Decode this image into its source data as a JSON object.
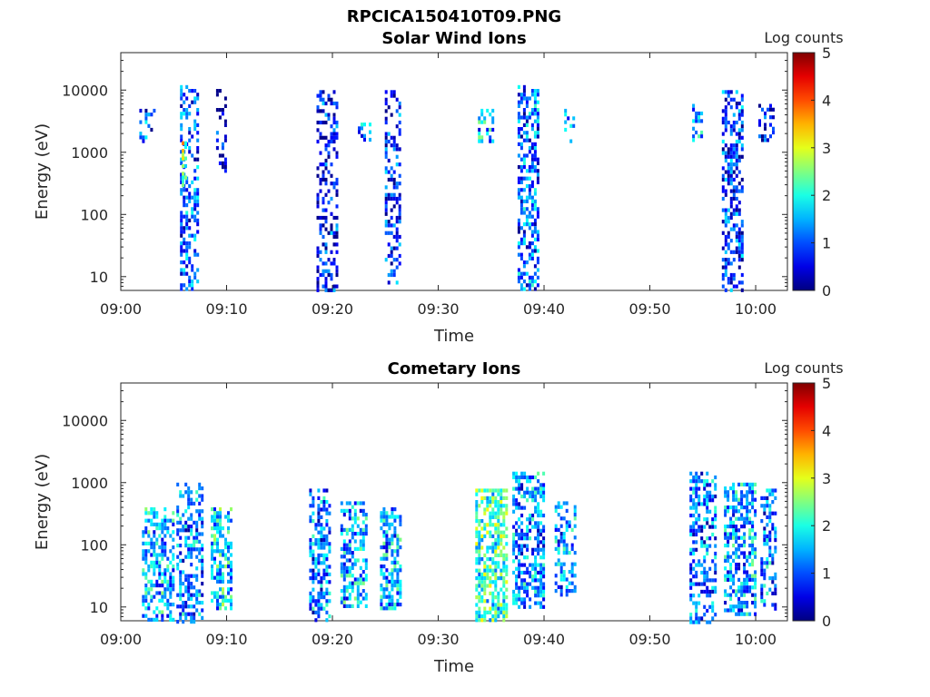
{
  "figure_title": "RPCICA150410T09.PNG",
  "chart_data": [
    {
      "type": "heatmap",
      "title": "Solar Wind Ions",
      "xlabel": "Time",
      "ylabel": "Energy (eV)",
      "x_ticks": [
        "09:00",
        "09:10",
        "09:20",
        "09:30",
        "09:40",
        "09:50",
        "10:00"
      ],
      "y_ticks": [
        "10",
        "100",
        "1000",
        "10000"
      ],
      "y_scale": "log",
      "xlim": [
        "09:00",
        "10:03"
      ],
      "ylim": [
        6,
        40000
      ],
      "colorbar": {
        "label": "Log counts",
        "ticks": [
          "0",
          "1",
          "2",
          "3",
          "4",
          "5"
        ],
        "range": [
          0,
          5
        ],
        "colormap": "jet"
      },
      "bursts": [
        {
          "time_min": 2.5,
          "width_min": 1.5,
          "e_lo": 1500,
          "e_hi": 5000,
          "level": 1.2,
          "density": 0.35
        },
        {
          "time_min": 6.5,
          "width_min": 1.8,
          "e_lo": 6,
          "e_hi": 12000,
          "level": 1.3,
          "density": 0.45
        },
        {
          "time_min": 6.0,
          "width_min": 0.5,
          "e_lo": 300,
          "e_hi": 1500,
          "level": 3.0,
          "density": 0.6
        },
        {
          "time_min": 9.5,
          "width_min": 1.0,
          "e_lo": 500,
          "e_hi": 12000,
          "level": 0.6,
          "density": 0.25
        },
        {
          "time_min": 19.5,
          "width_min": 2.0,
          "e_lo": 6,
          "e_hi": 10000,
          "level": 0.9,
          "density": 0.4
        },
        {
          "time_min": 23.0,
          "width_min": 1.2,
          "e_lo": 1500,
          "e_hi": 3000,
          "level": 1.8,
          "density": 0.4
        },
        {
          "time_min": 25.7,
          "width_min": 1.5,
          "e_lo": 8,
          "e_hi": 10000,
          "level": 1.0,
          "density": 0.4
        },
        {
          "time_min": 34.5,
          "width_min": 1.5,
          "e_lo": 1500,
          "e_hi": 5000,
          "level": 1.8,
          "density": 0.4
        },
        {
          "time_min": 38.5,
          "width_min": 2.0,
          "e_lo": 6,
          "e_hi": 12000,
          "level": 1.4,
          "density": 0.5
        },
        {
          "time_min": 42.3,
          "width_min": 0.8,
          "e_lo": 1500,
          "e_hi": 5000,
          "level": 1.5,
          "density": 0.35
        },
        {
          "time_min": 54.5,
          "width_min": 1.0,
          "e_lo": 1500,
          "e_hi": 6000,
          "level": 1.6,
          "density": 0.35
        },
        {
          "time_min": 57.8,
          "width_min": 2.0,
          "e_lo": 6,
          "e_hi": 10000,
          "level": 1.1,
          "density": 0.5
        },
        {
          "time_min": 61.0,
          "width_min": 1.5,
          "e_lo": 1500,
          "e_hi": 6000,
          "level": 0.8,
          "density": 0.25
        }
      ]
    },
    {
      "type": "heatmap",
      "title": "Cometary Ions",
      "xlabel": "Time",
      "ylabel": "Energy (eV)",
      "x_ticks": [
        "09:00",
        "09:10",
        "09:20",
        "09:30",
        "09:40",
        "09:50",
        "10:00"
      ],
      "y_ticks": [
        "10",
        "100",
        "1000",
        "10000"
      ],
      "y_scale": "log",
      "xlim": [
        "09:00",
        "10:03"
      ],
      "ylim": [
        6,
        40000
      ],
      "colorbar": {
        "label": "Log counts",
        "ticks": [
          "0",
          "1",
          "2",
          "3",
          "4",
          "5"
        ],
        "range": [
          0,
          5
        ],
        "colormap": "jet"
      },
      "bursts": [
        {
          "time_min": 3.5,
          "width_min": 3.0,
          "e_lo": 6,
          "e_hi": 400,
          "level": 1.8,
          "density": 0.55
        },
        {
          "time_min": 6.5,
          "width_min": 2.5,
          "e_lo": 6,
          "e_hi": 1000,
          "level": 1.5,
          "density": 0.5
        },
        {
          "time_min": 9.5,
          "width_min": 2.0,
          "e_lo": 10,
          "e_hi": 400,
          "level": 2.0,
          "density": 0.55
        },
        {
          "time_min": 18.8,
          "width_min": 2.0,
          "e_lo": 6,
          "e_hi": 800,
          "level": 1.5,
          "density": 0.5
        },
        {
          "time_min": 22.0,
          "width_min": 2.5,
          "e_lo": 10,
          "e_hi": 500,
          "level": 1.8,
          "density": 0.55
        },
        {
          "time_min": 25.5,
          "width_min": 2.0,
          "e_lo": 10,
          "e_hi": 400,
          "level": 1.7,
          "density": 0.55
        },
        {
          "time_min": 35.0,
          "width_min": 3.0,
          "e_lo": 6,
          "e_hi": 800,
          "level": 2.4,
          "density": 0.65
        },
        {
          "time_min": 38.5,
          "width_min": 3.0,
          "e_lo": 10,
          "e_hi": 1500,
          "level": 1.6,
          "density": 0.55
        },
        {
          "time_min": 42.0,
          "width_min": 2.0,
          "e_lo": 15,
          "e_hi": 500,
          "level": 1.6,
          "density": 0.5
        },
        {
          "time_min": 55.0,
          "width_min": 2.5,
          "e_lo": 6,
          "e_hi": 1500,
          "level": 1.5,
          "density": 0.5
        },
        {
          "time_min": 58.5,
          "width_min": 3.0,
          "e_lo": 8,
          "e_hi": 1000,
          "level": 1.7,
          "density": 0.55
        },
        {
          "time_min": 61.2,
          "width_min": 1.5,
          "e_lo": 10,
          "e_hi": 800,
          "level": 1.5,
          "density": 0.5
        }
      ]
    }
  ]
}
